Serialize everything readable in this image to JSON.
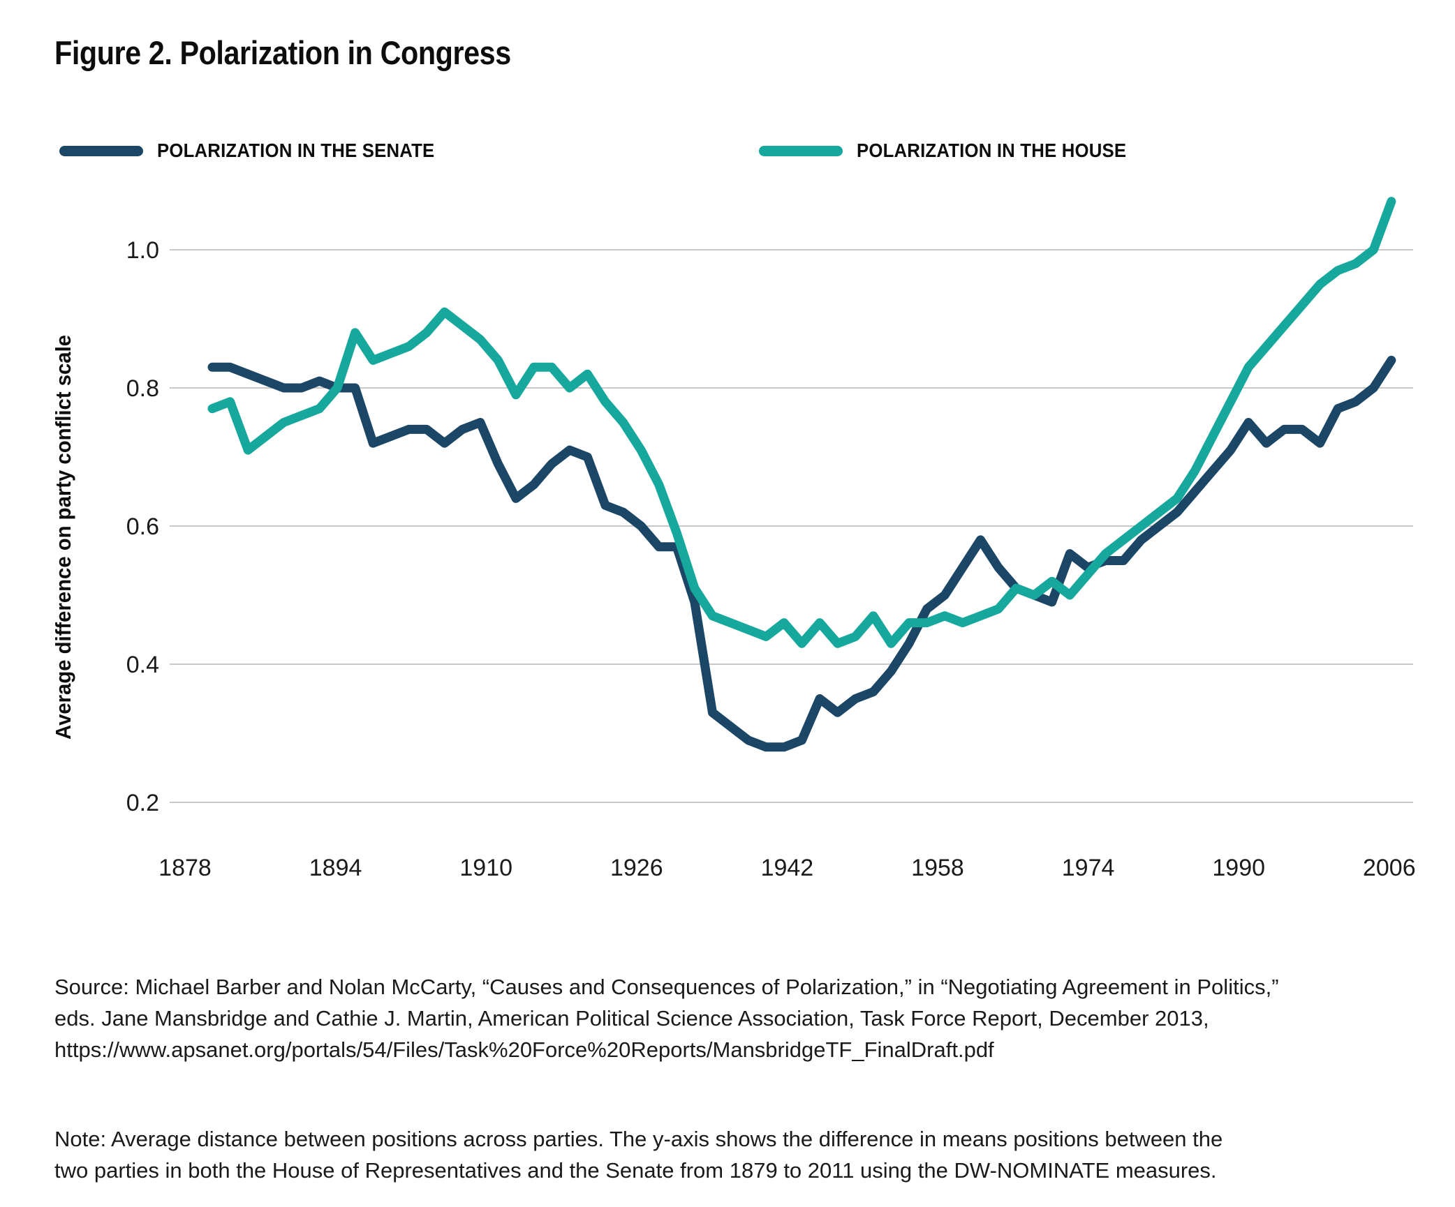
{
  "figure": {
    "title": "Figure 2. Polarization in Congress",
    "legend": [
      {
        "label": "POLARIZATION IN THE SENATE",
        "color": "#1B4666",
        "series": "senate"
      },
      {
        "label": "POLARIZATION IN THE HOUSE",
        "color": "#17A89D",
        "series": "house"
      }
    ],
    "source_lines": [
      "Source: Michael Barber and Nolan McCarty, “Causes and Consequences of Polarization,” in “Negotiating Agreement in Politics,”",
      "eds. Jane Mansbridge and Cathie J. Martin, American Political Science Association, Task Force Report, December 2013,",
      "https://www.apsanet.org/portals/54/Files/Task%20Force%20Reports/MansbridgeTF_FinalDraft.pdf"
    ],
    "note_lines": [
      "Note: Average distance between positions across parties. The y-axis shows the difference in means positions between the",
      "two parties in both the House of Representatives and the Senate from 1879 to 2011 using the DW-NOMINATE measures."
    ]
  },
  "chart_data": {
    "type": "line",
    "title": "Figure 2. Polarization in Congress",
    "xlabel": "",
    "ylabel": "Average difference on party conflict scale",
    "x_ticks": [
      1878,
      1894,
      1910,
      1926,
      1942,
      1958,
      1974,
      1990,
      2006
    ],
    "y_ticks": [
      0.2,
      0.4,
      0.6,
      0.8,
      1.0
    ],
    "ylim": [
      0.13,
      1.12
    ],
    "xlim": [
      1877,
      2012
    ],
    "grid": "horizontal",
    "legend_position": "top-left",
    "x": [
      1879,
      1881,
      1883,
      1885,
      1887,
      1889,
      1891,
      1893,
      1895,
      1897,
      1899,
      1901,
      1903,
      1905,
      1907,
      1909,
      1911,
      1913,
      1915,
      1917,
      1919,
      1921,
      1923,
      1925,
      1927,
      1929,
      1931,
      1933,
      1935,
      1937,
      1939,
      1941,
      1943,
      1945,
      1947,
      1949,
      1951,
      1953,
      1955,
      1957,
      1959,
      1961,
      1963,
      1965,
      1967,
      1969,
      1971,
      1973,
      1975,
      1977,
      1979,
      1981,
      1983,
      1985,
      1987,
      1989,
      1991,
      1993,
      1995,
      1997,
      1999,
      2001,
      2003,
      2005,
      2007,
      2009,
      2011
    ],
    "series": [
      {
        "name": "Polarization in the Senate",
        "color": "#1B4666",
        "values": [
          0.83,
          0.83,
          0.82,
          0.81,
          0.8,
          0.8,
          0.81,
          0.8,
          0.8,
          0.72,
          0.73,
          0.74,
          0.74,
          0.72,
          0.74,
          0.75,
          0.69,
          0.64,
          0.66,
          0.69,
          0.71,
          0.7,
          0.63,
          0.62,
          0.6,
          0.57,
          0.57,
          0.49,
          0.33,
          0.31,
          0.29,
          0.28,
          0.28,
          0.29,
          0.35,
          0.33,
          0.35,
          0.36,
          0.39,
          0.43,
          0.48,
          0.5,
          0.54,
          0.58,
          0.54,
          0.51,
          0.5,
          0.49,
          0.56,
          0.54,
          0.55,
          0.55,
          0.58,
          0.6,
          0.62,
          0.65,
          0.68,
          0.71,
          0.75,
          0.72,
          0.74,
          0.74,
          0.72,
          0.77,
          0.78,
          0.8,
          0.84
        ]
      },
      {
        "name": "Polarization in the House",
        "color": "#17A89D",
        "values": [
          0.77,
          0.78,
          0.71,
          0.73,
          0.75,
          0.76,
          0.77,
          0.8,
          0.88,
          0.84,
          0.85,
          0.86,
          0.88,
          0.91,
          0.89,
          0.87,
          0.84,
          0.79,
          0.83,
          0.83,
          0.8,
          0.82,
          0.78,
          0.75,
          0.71,
          0.66,
          0.59,
          0.51,
          0.47,
          0.46,
          0.45,
          0.44,
          0.46,
          0.43,
          0.46,
          0.43,
          0.44,
          0.47,
          0.43,
          0.46,
          0.46,
          0.47,
          0.46,
          0.47,
          0.48,
          0.51,
          0.5,
          0.52,
          0.5,
          0.53,
          0.56,
          0.58,
          0.6,
          0.62,
          0.64,
          0.68,
          0.73,
          0.78,
          0.83,
          0.86,
          0.89,
          0.92,
          0.95,
          0.97,
          0.98,
          1.0,
          1.07
        ]
      }
    ]
  }
}
